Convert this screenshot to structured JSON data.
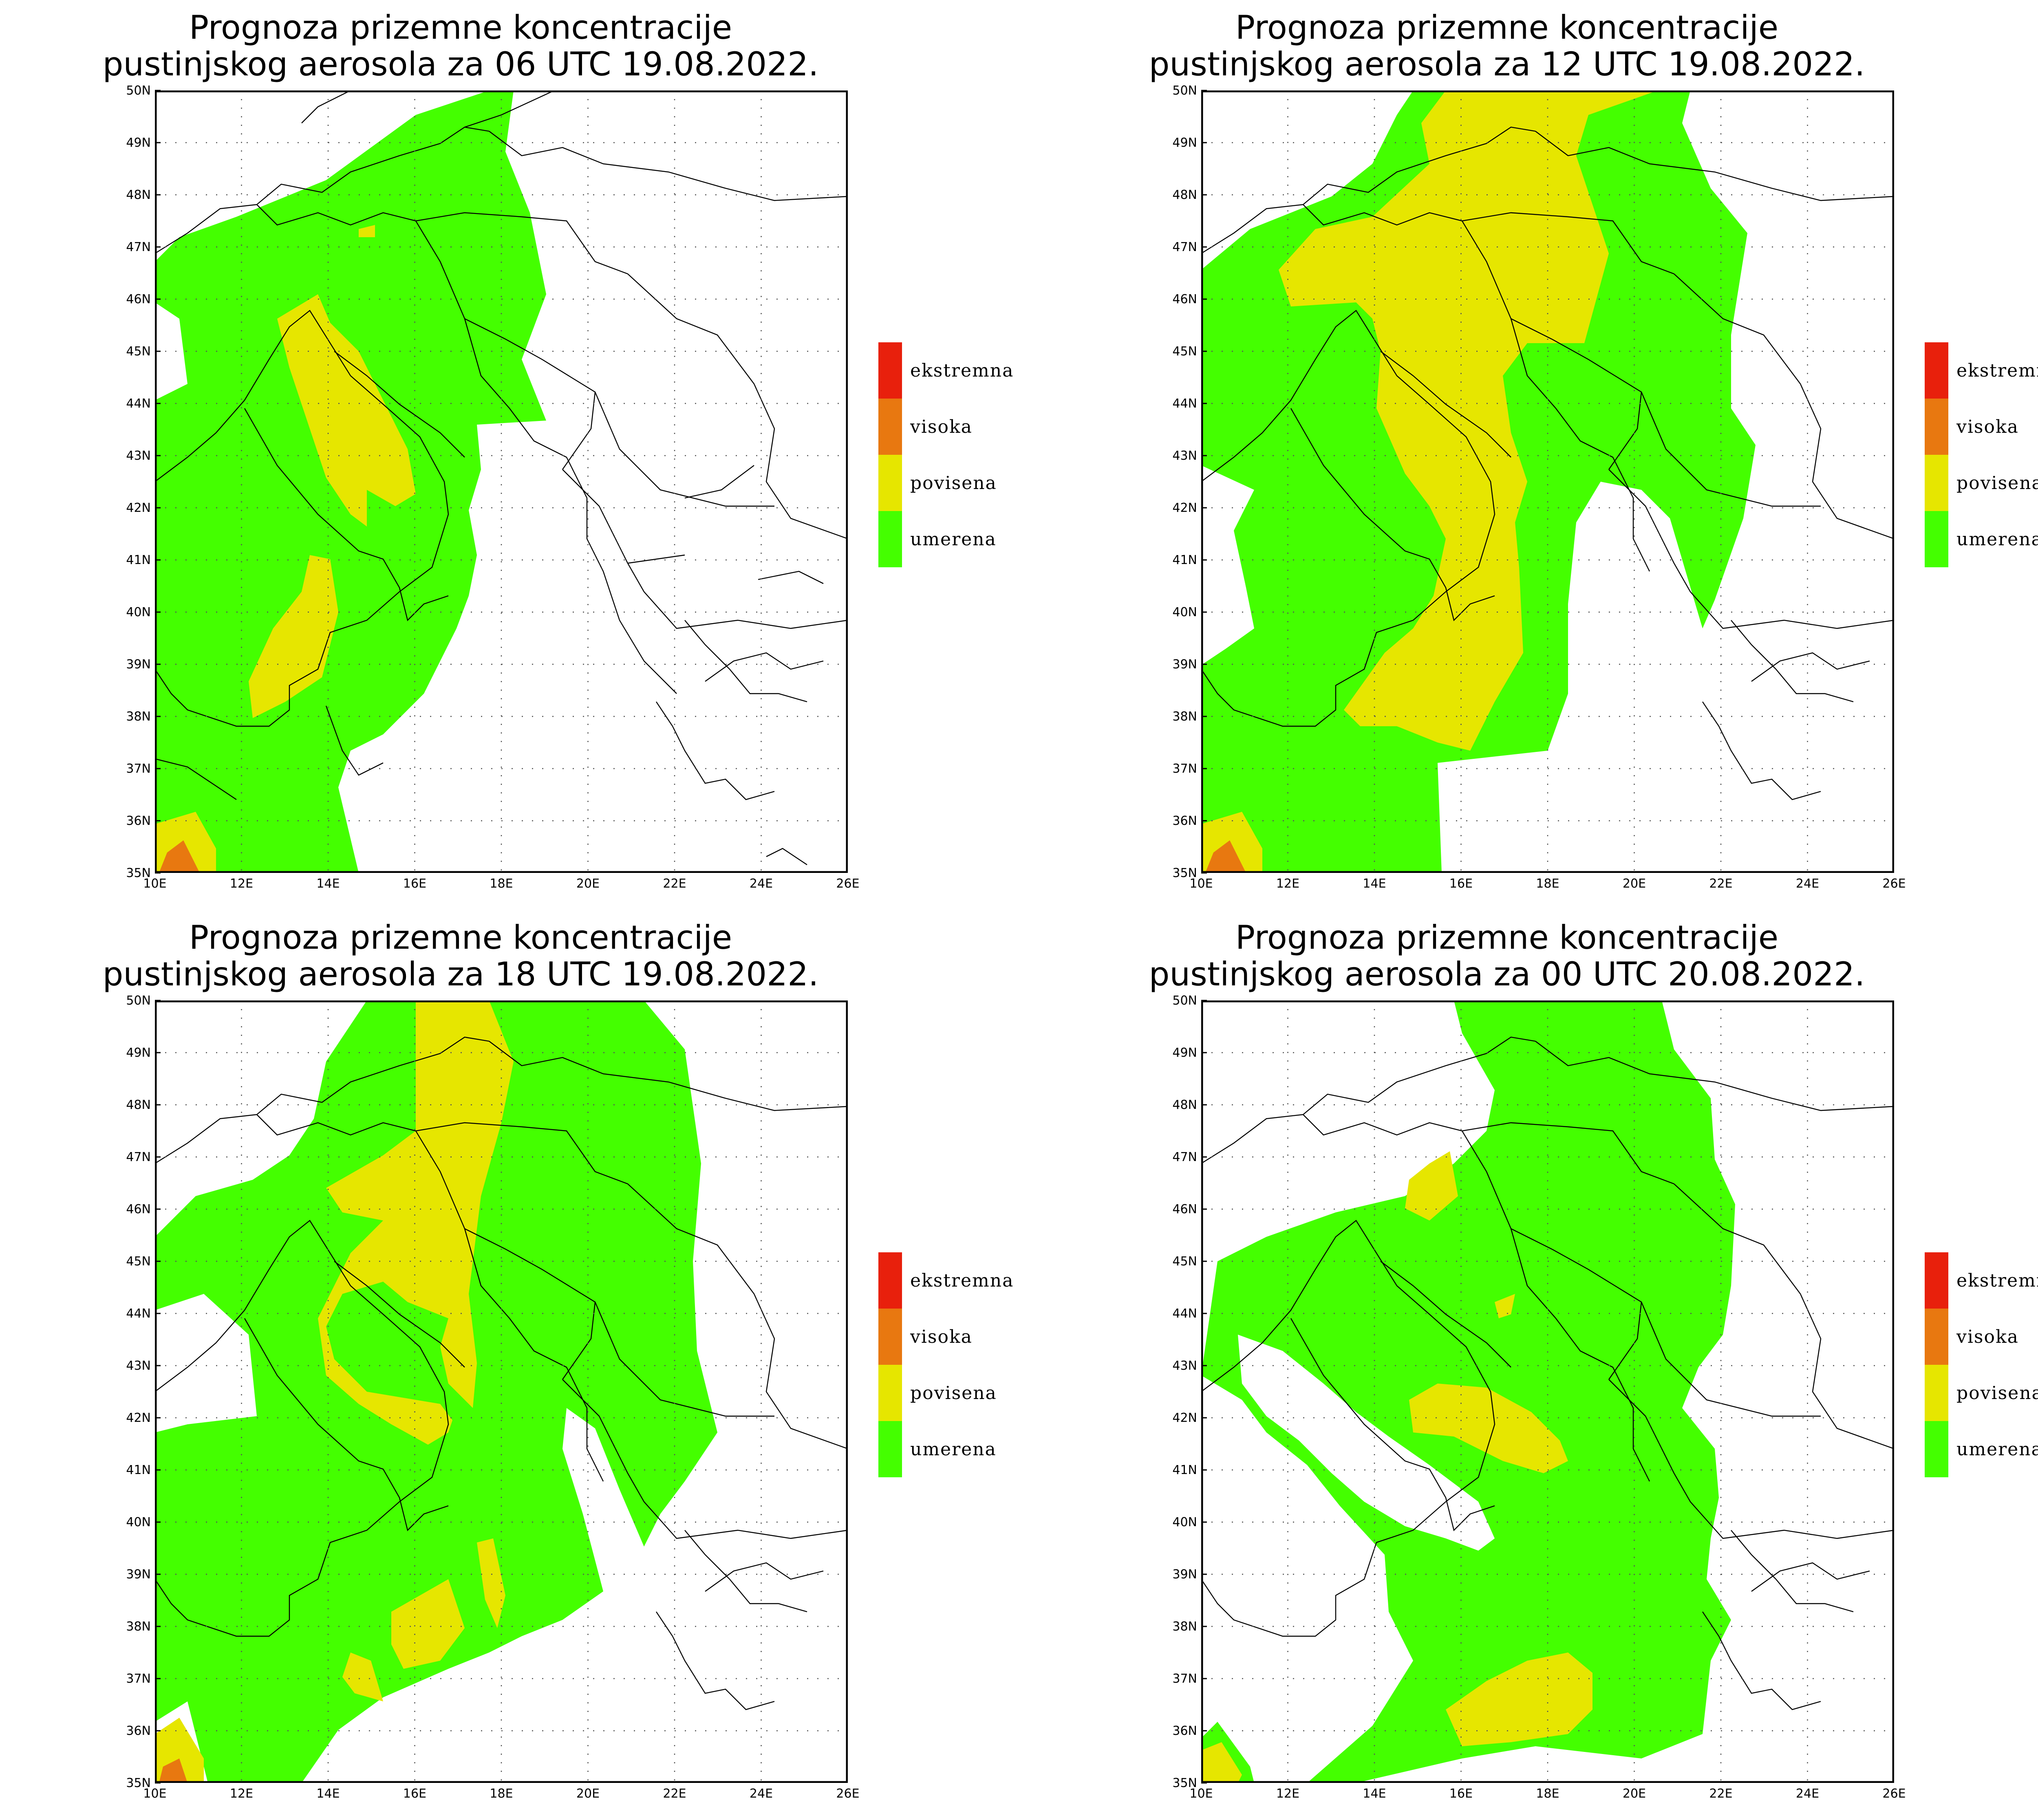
{
  "legend": {
    "items": [
      {
        "label": "ekstremna",
        "color": "#e8200c"
      },
      {
        "label": "visoka",
        "color": "#e87810"
      },
      {
        "label": "povisena",
        "color": "#e6e600"
      },
      {
        "label": "umerena",
        "color": "#44ff00"
      }
    ]
  },
  "axes": {
    "lat_labels": [
      "35N",
      "36N",
      "37N",
      "38N",
      "39N",
      "40N",
      "41N",
      "42N",
      "43N",
      "44N",
      "45N",
      "46N",
      "47N",
      "48N",
      "49N",
      "50N"
    ],
    "lon_labels": [
      "10E",
      "12E",
      "14E",
      "16E",
      "18E",
      "20E",
      "22E",
      "24E",
      "26E"
    ]
  },
  "panels": [
    {
      "title_line1": "Prognoza prizemne koncentracije",
      "title_line2": "pustinjskog aerosola za 06 UTC 19.08.2022."
    },
    {
      "title_line1": "Prognoza prizemne koncentracije",
      "title_line2": "pustinjskog aerosola za 12 UTC 19.08.2022."
    },
    {
      "title_line1": "Prognoza prizemne koncentracije",
      "title_line2": "pustinjskog aerosola za 18 UTC 19.08.2022."
    },
    {
      "title_line1": "Prognoza prizemne koncentracije",
      "title_line2": "pustinjskog aerosola za 00 UTC 20.08.2022."
    }
  ],
  "colors": {
    "frame": "#000000",
    "border": "#000000",
    "grid": "#555555",
    "background": "#ffffff"
  }
}
